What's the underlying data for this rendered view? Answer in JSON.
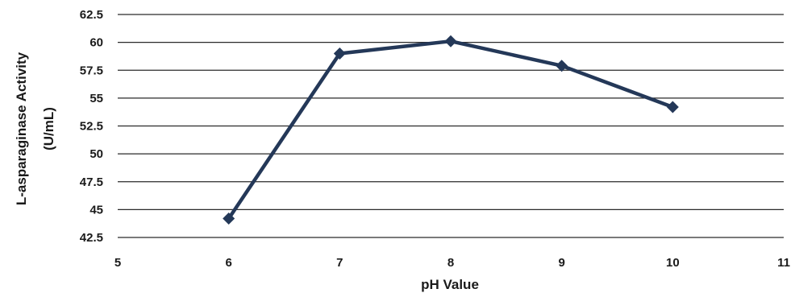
{
  "chart_data": {
    "type": "line",
    "title": "",
    "xlabel": "pH Value",
    "ylabel_line1": "L-asparaginase Activity",
    "ylabel_line2": "(U/mL)",
    "xlim": [
      5,
      11
    ],
    "ylim": [
      42.5,
      62.5
    ],
    "x_ticks": [
      "5",
      "6",
      "7",
      "8",
      "9",
      "10",
      "11"
    ],
    "y_ticks": [
      "42.5",
      "45",
      "47.5",
      "50",
      "52.5",
      "55",
      "57.5",
      "60",
      "62.5"
    ],
    "grid": "horizontal",
    "legend": "none",
    "series": [
      {
        "x": [
          6,
          7,
          8,
          9,
          10
        ],
        "y": [
          44.2,
          59.0,
          60.1,
          57.9,
          54.2
        ],
        "color": "#243858",
        "marker": "diamond"
      }
    ]
  }
}
